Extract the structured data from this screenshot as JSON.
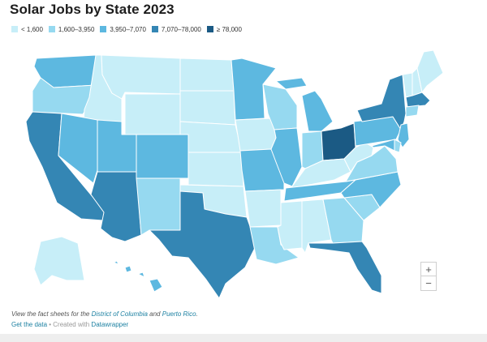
{
  "title": "Solar Jobs by State 2023",
  "legend": [
    {
      "label": "< 1,600",
      "color": "#c7eef8"
    },
    {
      "label": "1,600–3,950",
      "color": "#96d9f0"
    },
    {
      "label": "3,950–7,070",
      "color": "#5db8e0"
    },
    {
      "label": "7,070–78,000",
      "color": "#3486b4"
    },
    {
      "label": "≥ 78,000",
      "color": "#1b5a84"
    }
  ],
  "states": {
    "WA": "#5db8e0",
    "OR": "#96d9f0",
    "CA": "#3486b4",
    "ID": "#c7eef8",
    "NV": "#5db8e0",
    "MT": "#c7eef8",
    "WY": "#c7eef8",
    "UT": "#5db8e0",
    "AZ": "#3486b4",
    "CO": "#5db8e0",
    "NM": "#96d9f0",
    "ND": "#c7eef8",
    "SD": "#c7eef8",
    "NE": "#c7eef8",
    "KS": "#c7eef8",
    "OK": "#c7eef8",
    "TX": "#3486b4",
    "MN": "#5db8e0",
    "IA": "#c7eef8",
    "MO": "#5db8e0",
    "AR": "#c7eef8",
    "LA": "#96d9f0",
    "WI": "#96d9f0",
    "IL": "#5db8e0",
    "MI": "#5db8e0",
    "IN": "#96d9f0",
    "OH": "#1b5a84",
    "KY": "#c7eef8",
    "TN": "#5db8e0",
    "MS": "#c7eef8",
    "AL": "#c7eef8",
    "GA": "#96d9f0",
    "FL": "#3486b4",
    "SC": "#96d9f0",
    "NC": "#5db8e0",
    "VA": "#96d9f0",
    "WV": "#c7eef8",
    "PA": "#5db8e0",
    "NY": "#3486b4",
    "VT": "#c7eef8",
    "NH": "#c7eef8",
    "ME": "#c7eef8",
    "MA": "#3486b4",
    "CT": "#96d9f0",
    "NJ": "#5db8e0",
    "DE": "#96d9f0",
    "MD": "#5db8e0",
    "AK": "#c7eef8",
    "HI": "#5db8e0"
  },
  "zoom": {
    "in_label": "+",
    "out_label": "−"
  },
  "note": {
    "prefix": "View the fact sheets for the ",
    "link1": "District of Columbia",
    "middle": " and ",
    "link2": "Puerto Rico",
    "suffix": "."
  },
  "footer": {
    "get_data": "Get the data",
    "separator": " • Created with ",
    "credit": "Datawrapper"
  }
}
